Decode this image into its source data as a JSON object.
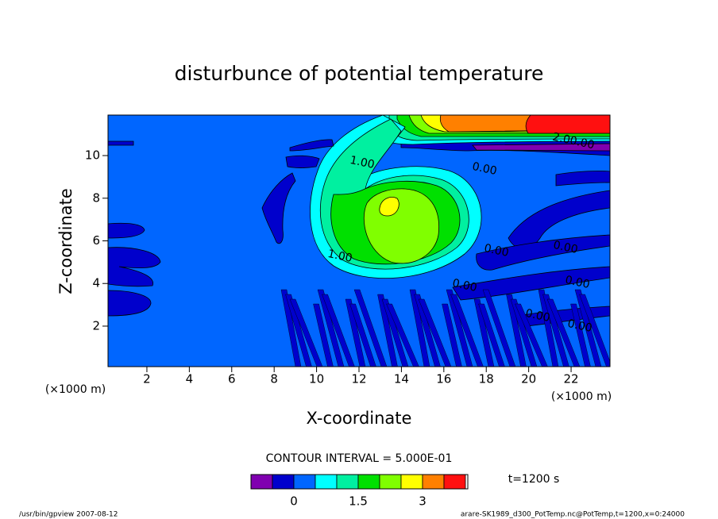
{
  "chart_data": {
    "type": "contour",
    "title": "disturbunce of potential temperature",
    "xlabel": "X-coordinate",
    "ylabel": "Z-coordinate",
    "x_unit": "(×1000 m)",
    "xlim": [
      0.167,
      23.833
    ],
    "xticks": [
      2,
      4,
      6,
      8,
      10,
      12,
      14,
      16,
      18,
      20,
      22
    ],
    "ylim": [
      0.1,
      11.9
    ],
    "yticks": [
      2,
      4,
      6,
      8,
      10
    ],
    "levels": [
      -1,
      -0.5,
      0,
      0.5,
      1,
      1.5,
      2,
      2.5,
      3,
      3.5,
      4
    ],
    "colors": [
      "#8000b0",
      "#0000cc",
      "#0066ff",
      "#00ffff",
      "#00f0a0",
      "#00e000",
      "#80ff00",
      "#ffff00",
      "#ff8000",
      "#ff1010"
    ],
    "colorbar_ticks": [
      0,
      1.5,
      3
    ],
    "contour_interval": "CONTOUR INTERVAL = 5.000E-01",
    "time": "t=1200 s",
    "contour_labels": [
      "1.00",
      "1.00",
      "0.00",
      "0.00",
      "0.00",
      "0.00",
      "0.00",
      "0.00",
      "0.00",
      "2.00.00"
    ],
    "footer_left": "/usr/bin/gpview   2007-08-12",
    "footer_right": "arare-SK1989_d300_PotTemp.nc@PotTemp,t=1200,x=0:24000"
  }
}
